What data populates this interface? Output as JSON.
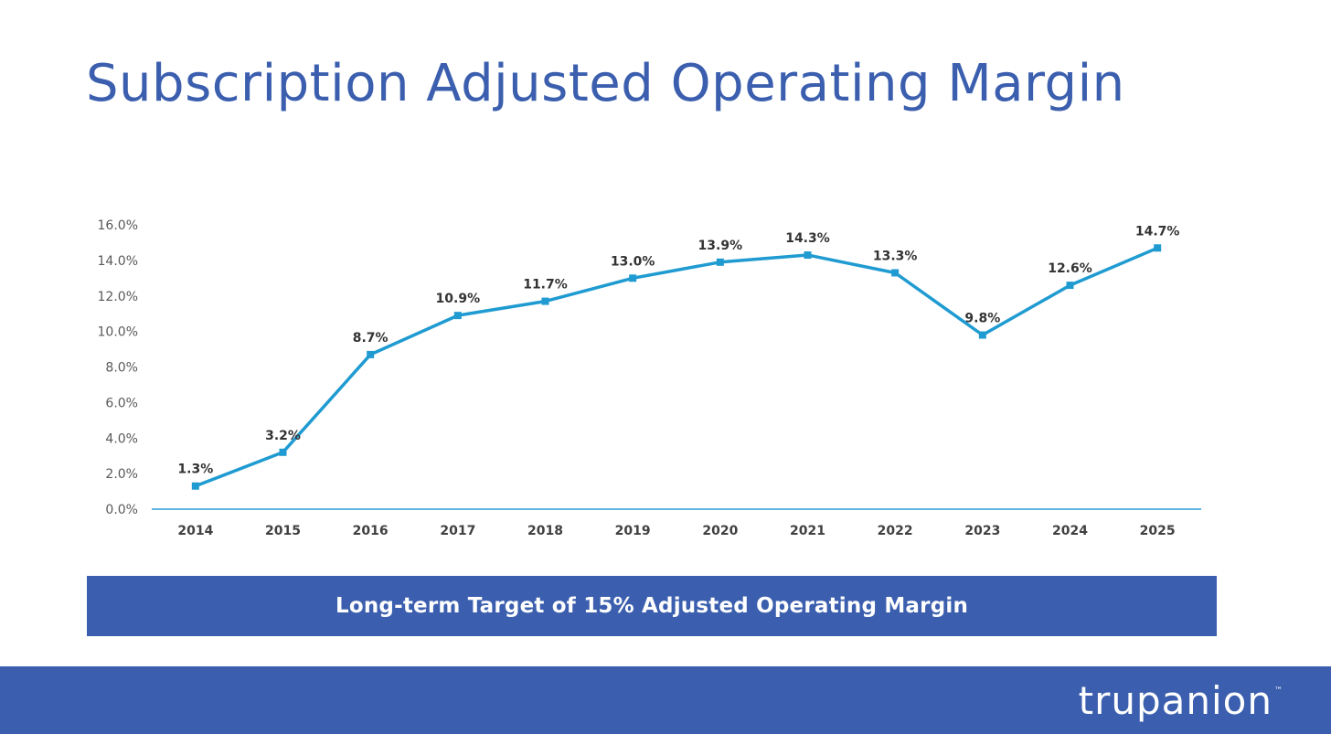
{
  "title": "Subscription Adjusted Operating Margin",
  "banner": {
    "text": "Long-term Target of 15% Adjusted Operating Margin"
  },
  "footer": {
    "logo_text": "trupanion",
    "logo_tm": "™"
  },
  "colors": {
    "brand_blue": "#3b5fae",
    "line": "#1f9bd1",
    "axis": "#2a9fd6"
  },
  "chart_data": {
    "type": "line",
    "title": "",
    "xlabel": "",
    "ylabel": "",
    "categories": [
      "2014",
      "2015",
      "2016",
      "2017",
      "2018",
      "2019",
      "2020",
      "2021",
      "2022",
      "2023",
      "2024",
      "2025"
    ],
    "values": [
      1.3,
      3.2,
      8.7,
      10.9,
      11.7,
      13.0,
      13.9,
      14.3,
      13.3,
      9.8,
      12.6,
      14.7
    ],
    "data_labels": [
      "1.3%",
      "3.2%",
      "8.7%",
      "10.9%",
      "11.7%",
      "13.0%",
      "13.9%",
      "14.3%",
      "13.3%",
      "9.8%",
      "12.6%",
      "14.7%"
    ],
    "ylim": [
      0,
      16
    ],
    "yticks": [
      "0.0%",
      "2.0%",
      "4.0%",
      "6.0%",
      "8.0%",
      "10.0%",
      "12.0%",
      "14.0%",
      "16.0%"
    ],
    "grid": false,
    "legend": "none"
  }
}
